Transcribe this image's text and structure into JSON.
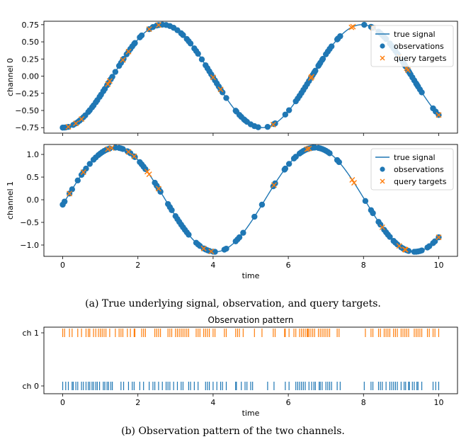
{
  "colors": {
    "signal": "#1f77b4",
    "observations": "#1f77b4",
    "targets": "#ff7f0e",
    "ch0": "#1f77b4",
    "ch1": "#ff7f0e"
  },
  "legend": {
    "signal": "true signal",
    "observations": "observations",
    "targets": "query targets"
  },
  "captions": {
    "a": "(a) True underlying signal, observation, and query targets.",
    "b": "(b) Observation pattern of the two channels."
  },
  "chart_data": [
    {
      "type": "line",
      "panel": "channel 0",
      "ylabel": "channel 0",
      "xlabel": "",
      "xlim": [
        -0.5,
        10.5
      ],
      "ylim": [
        -0.83,
        0.8
      ],
      "x_ticks": [
        0,
        2,
        4,
        6,
        8,
        10
      ],
      "y_ticks": [
        -0.75,
        -0.5,
        -0.25,
        0.0,
        0.25,
        0.5,
        0.75
      ],
      "y_tick_labels": [
        "−0.75",
        "−0.50",
        "−0.25",
        "0.00",
        "0.25",
        "0.50",
        "0.75"
      ],
      "signal": {
        "amplitude": 0.75,
        "period": 5.3,
        "x_zero": 1.33,
        "x_range": [
          0,
          10
        ]
      },
      "observations_x": [
        0.0,
        0.05,
        0.08,
        0.15,
        0.28,
        0.35,
        0.4,
        0.45,
        0.5,
        0.55,
        0.6,
        0.68,
        0.72,
        0.78,
        0.82,
        0.88,
        0.92,
        0.98,
        1.02,
        1.08,
        1.12,
        1.18,
        1.22,
        1.28,
        1.32,
        1.4,
        1.5,
        1.55,
        1.6,
        1.62,
        1.7,
        1.75,
        1.8,
        1.85,
        1.9,
        1.92,
        2.05,
        2.1,
        2.3,
        2.4,
        2.5,
        2.55,
        2.65,
        2.75,
        2.85,
        2.95,
        3.05,
        3.15,
        3.2,
        3.3,
        3.35,
        3.4,
        3.5,
        3.55,
        3.6,
        3.7,
        3.8,
        3.85,
        3.9,
        3.95,
        4.0,
        4.05,
        4.1,
        4.15,
        4.2,
        4.25,
        4.35,
        4.6,
        4.62,
        4.7,
        4.75,
        4.82,
        4.85,
        4.9,
        5.0,
        5.1,
        5.2,
        5.45,
        5.62,
        5.65,
        5.92,
        6.02,
        6.2,
        6.25,
        6.3,
        6.35,
        6.4,
        6.45,
        6.5,
        6.55,
        6.6,
        6.62,
        6.65,
        6.68,
        6.7,
        6.72,
        6.8,
        6.82,
        6.85,
        6.9,
        6.92,
        7.0,
        7.05,
        7.1,
        7.15,
        7.3,
        7.32,
        7.38,
        8.02,
        8.2,
        8.22,
        8.25,
        8.4,
        8.45,
        8.5,
        8.55,
        8.6,
        8.7,
        8.75,
        8.8,
        8.85,
        8.9,
        8.92,
        9.0,
        9.05,
        9.08,
        9.1,
        9.12,
        9.18,
        9.2,
        9.22,
        9.25,
        9.3,
        9.35,
        9.4,
        9.42,
        9.45,
        9.5,
        9.55,
        9.85,
        9.92,
        10.0
      ],
      "targets_x": [
        0.15,
        0.35,
        0.5,
        1.2,
        1.25,
        1.6,
        1.75,
        2.3,
        2.55,
        4.0,
        4.2,
        5.6,
        6.6,
        6.62,
        7.68,
        7.72,
        8.25,
        8.95,
        9.15,
        9.18,
        10.0
      ]
    },
    {
      "type": "line",
      "panel": "channel 1",
      "ylabel": "channel 1",
      "xlabel": "time",
      "xlim": [
        -0.5,
        10.5
      ],
      "ylim": [
        -1.25,
        1.22
      ],
      "x_ticks": [
        0,
        2,
        4,
        6,
        8,
        10
      ],
      "y_ticks": [
        -1.0,
        -0.5,
        0.0,
        0.5,
        1.0
      ],
      "y_tick_labels": [
        "−1.0",
        "−0.5",
        "0.0",
        "0.5",
        "1.0"
      ],
      "signal": {
        "amplitude": 1.15,
        "period": 5.3,
        "x_zero": 0.08,
        "x_range": [
          0,
          10
        ]
      },
      "observations_x": [
        0.0,
        0.05,
        0.18,
        0.25,
        0.4,
        0.5,
        0.55,
        0.62,
        0.72,
        0.82,
        0.88,
        0.95,
        1.0,
        1.05,
        1.1,
        1.15,
        1.2,
        1.25,
        1.4,
        1.5,
        1.55,
        1.6,
        1.72,
        1.75,
        1.8,
        1.9,
        1.92,
        2.05,
        2.1,
        2.15,
        2.2,
        2.45,
        2.5,
        2.55,
        2.6,
        2.8,
        2.85,
        2.9,
        3.0,
        3.05,
        3.1,
        3.15,
        3.2,
        3.25,
        3.3,
        3.35,
        3.55,
        3.6,
        3.65,
        3.75,
        3.8,
        3.85,
        3.9,
        4.0,
        4.05,
        4.3,
        4.35,
        4.6,
        4.65,
        4.7,
        4.8,
        5.1,
        5.3,
        5.6,
        5.65,
        5.9,
        5.92,
        6.02,
        6.15,
        6.2,
        6.3,
        6.35,
        6.4,
        6.45,
        6.5,
        6.52,
        6.55,
        6.6,
        6.65,
        6.7,
        6.8,
        6.85,
        6.9,
        6.95,
        7.0,
        7.05,
        7.1,
        7.3,
        7.35,
        8.05,
        8.2,
        8.25,
        8.4,
        8.45,
        8.55,
        8.6,
        8.65,
        8.7,
        8.8,
        8.85,
        8.9,
        9.0,
        9.05,
        9.1,
        9.15,
        9.2,
        9.35,
        9.4,
        9.45,
        9.5,
        9.55,
        9.7,
        9.75,
        9.85,
        9.9,
        10.0
      ],
      "targets_x": [
        0.18,
        0.55,
        1.2,
        1.3,
        1.75,
        1.9,
        2.25,
        2.3,
        2.55,
        3.75,
        3.95,
        5.62,
        6.5,
        6.55,
        7.7,
        7.75,
        8.5,
        8.95,
        9.1,
        9.12,
        10.0
      ]
    },
    {
      "type": "scatter",
      "panel": "observation pattern",
      "title": "Observation pattern",
      "xlabel": "time",
      "xlim": [
        -0.5,
        10.5
      ],
      "x_ticks": [
        0,
        2,
        4,
        6,
        8,
        10
      ],
      "categories": [
        "ch 0",
        "ch 1"
      ],
      "series": [
        {
          "name": "ch 0",
          "x": [
            0.0,
            0.08,
            0.15,
            0.25,
            0.28,
            0.35,
            0.4,
            0.5,
            0.55,
            0.62,
            0.68,
            0.72,
            0.78,
            0.82,
            0.88,
            0.92,
            0.98,
            1.08,
            1.12,
            1.18,
            1.22,
            1.28,
            1.32,
            1.55,
            1.62,
            1.75,
            1.85,
            1.9,
            2.05,
            2.15,
            2.3,
            2.4,
            2.45,
            2.55,
            2.65,
            2.75,
            2.8,
            2.85,
            2.95,
            3.05,
            3.15,
            3.2,
            3.35,
            3.4,
            3.5,
            3.6,
            3.8,
            3.85,
            3.9,
            4.0,
            4.1,
            4.2,
            4.25,
            4.35,
            4.6,
            4.62,
            4.75,
            4.85,
            4.9,
            5.0,
            5.05,
            5.45,
            5.62,
            5.92,
            6.02,
            6.2,
            6.25,
            6.3,
            6.35,
            6.4,
            6.45,
            6.55,
            6.62,
            6.68,
            6.72,
            6.82,
            6.85,
            6.9,
            7.0,
            7.05,
            7.1,
            7.15,
            7.3,
            7.38,
            8.02,
            8.2,
            8.25,
            8.4,
            8.45,
            8.5,
            8.6,
            8.7,
            8.75,
            8.8,
            8.85,
            8.9,
            9.0,
            9.08,
            9.12,
            9.2,
            9.22,
            9.3,
            9.35,
            9.42,
            9.45,
            9.55,
            9.85,
            9.92,
            10.0
          ]
        },
        {
          "name": "ch 1",
          "x": [
            0.0,
            0.05,
            0.18,
            0.25,
            0.4,
            0.5,
            0.62,
            0.68,
            0.72,
            0.82,
            0.88,
            0.95,
            1.0,
            1.05,
            1.1,
            1.15,
            1.25,
            1.4,
            1.5,
            1.55,
            1.6,
            1.72,
            1.8,
            1.9,
            1.92,
            2.1,
            2.15,
            2.2,
            2.45,
            2.5,
            2.55,
            2.6,
            2.8,
            2.85,
            2.9,
            3.0,
            3.05,
            3.1,
            3.15,
            3.2,
            3.25,
            3.3,
            3.35,
            3.55,
            3.6,
            3.65,
            3.75,
            3.8,
            3.85,
            3.9,
            4.0,
            4.05,
            4.3,
            4.35,
            4.6,
            4.65,
            4.7,
            4.8,
            5.1,
            5.3,
            5.6,
            5.65,
            5.9,
            5.92,
            6.02,
            6.15,
            6.2,
            6.3,
            6.35,
            6.4,
            6.45,
            6.5,
            6.52,
            6.55,
            6.6,
            6.65,
            6.7,
            6.8,
            6.85,
            6.9,
            6.95,
            7.0,
            7.05,
            7.1,
            7.3,
            7.35,
            8.05,
            8.2,
            8.25,
            8.4,
            8.45,
            8.55,
            8.6,
            8.65,
            8.7,
            8.8,
            8.85,
            8.9,
            9.0,
            9.05,
            9.1,
            9.15,
            9.2,
            9.35,
            9.4,
            9.45,
            9.5,
            9.55,
            9.7,
            9.75,
            9.85,
            9.9,
            10.0
          ]
        }
      ]
    }
  ]
}
